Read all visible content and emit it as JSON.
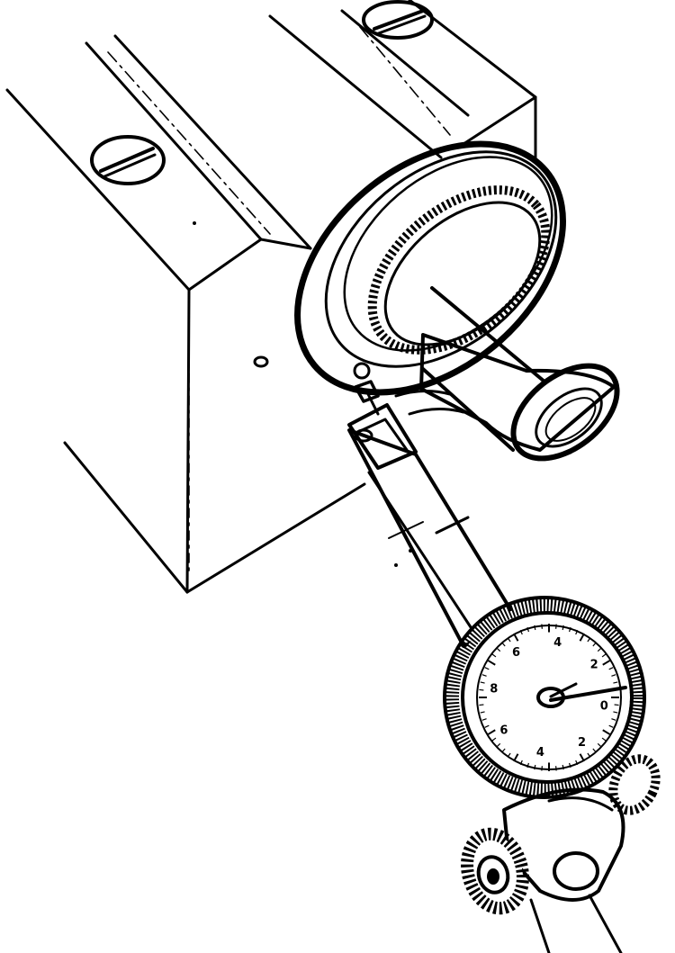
{
  "colors": {
    "ink": "#000000",
    "paper": "#ffffff"
  },
  "dial": {
    "numbers": [
      "6",
      "4",
      "2",
      "0",
      "2",
      "4",
      "6",
      "8"
    ]
  }
}
